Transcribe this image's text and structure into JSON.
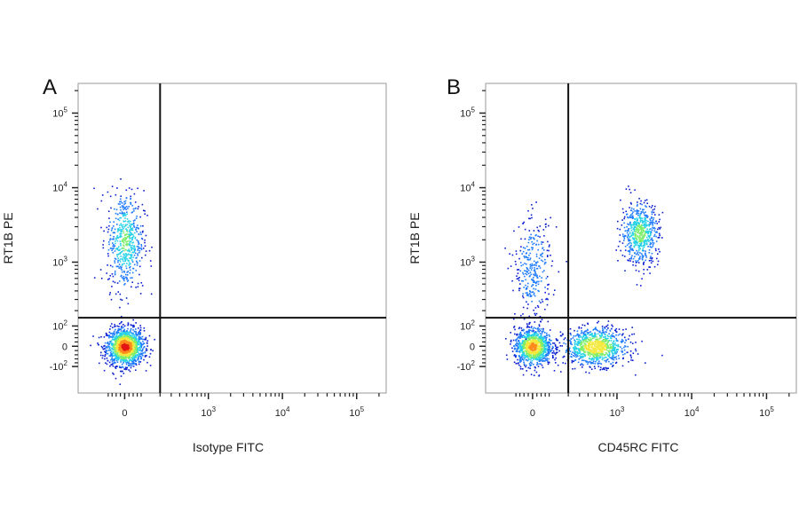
{
  "chart_data": [
    {
      "type": "scatter",
      "panel_label": "A",
      "xlabel": "Isotype FITC",
      "ylabel": "RT1B PE",
      "x_scale": "biexponential",
      "y_scale": "biexponential",
      "x_ticks": [
        {
          "label": "0"
        },
        {
          "label": "10",
          "exp": "3"
        },
        {
          "label": "10",
          "exp": "4"
        },
        {
          "label": "10",
          "exp": "5"
        }
      ],
      "y_ticks": [
        {
          "label": "-10",
          "exp": "2"
        },
        {
          "label": "0"
        },
        {
          "label": "10",
          "exp": "2"
        },
        {
          "label": "10",
          "exp": "3"
        },
        {
          "label": "10",
          "exp": "4"
        },
        {
          "label": "10",
          "exp": "5"
        }
      ],
      "gates": {
        "x": 200,
        "y": 150
      },
      "populations": [
        {
          "x": 0,
          "y": 0,
          "n": 1400,
          "note": "double negative"
        },
        {
          "x": 0,
          "y": 2000,
          "n": 550,
          "note": "RT1B+"
        }
      ],
      "grid": false,
      "density_colormap": [
        "#0a1fd1",
        "#1e7bff",
        "#27d1e8",
        "#7dee6a",
        "#f3e83c",
        "#ff8a1c",
        "#e51414"
      ]
    },
    {
      "type": "scatter",
      "panel_label": "B",
      "xlabel": "CD45RC FITC",
      "ylabel": "RT1B PE",
      "x_scale": "biexponential",
      "y_scale": "biexponential",
      "x_ticks": [
        {
          "label": "0"
        },
        {
          "label": "10",
          "exp": "3"
        },
        {
          "label": "10",
          "exp": "4"
        },
        {
          "label": "10",
          "exp": "5"
        }
      ],
      "y_ticks": [
        {
          "label": "-10",
          "exp": "2"
        },
        {
          "label": "0"
        },
        {
          "label": "10",
          "exp": "2"
        },
        {
          "label": "10",
          "exp": "3"
        },
        {
          "label": "10",
          "exp": "4"
        },
        {
          "label": "10",
          "exp": "5"
        }
      ],
      "gates": {
        "x": 200,
        "y": 150
      },
      "populations": [
        {
          "x": 0,
          "y": 0,
          "n": 1000,
          "note": "double negative"
        },
        {
          "x": 500,
          "y": 0,
          "n": 900,
          "note": "CD45RC+"
        },
        {
          "x": 2000,
          "y": 2500,
          "n": 600,
          "note": "double positive"
        },
        {
          "x": 0,
          "y": 800,
          "n": 300,
          "note": "RT1B+ scattered"
        }
      ],
      "grid": false,
      "density_colormap": [
        "#0a1fd1",
        "#1e7bff",
        "#27d1e8",
        "#7dee6a",
        "#f3e83c",
        "#ff8a1c",
        "#e51414"
      ]
    }
  ]
}
